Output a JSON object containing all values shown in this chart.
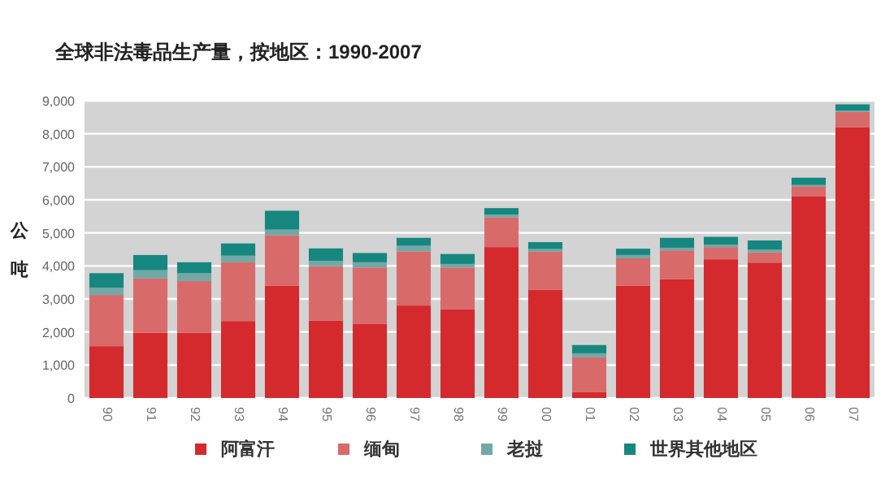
{
  "chart_data": {
    "type": "bar",
    "title": "全球非法毒品生产量，按地区：1990-2007",
    "ylabel": "公吨",
    "stacked": true,
    "categories": [
      "90",
      "91",
      "92",
      "93",
      "94",
      "95",
      "96",
      "97",
      "98",
      "99",
      "00",
      "01",
      "02",
      "03",
      "04",
      "05",
      "06",
      "07"
    ],
    "series": [
      {
        "name": "阿富汗",
        "color": "#d42a2e",
        "values": [
          1570,
          1980,
          1970,
          2330,
          3400,
          2340,
          2250,
          2800,
          2690,
          4570,
          3280,
          185,
          3400,
          3600,
          4200,
          4100,
          6100,
          8200
        ]
      },
      {
        "name": "缅甸",
        "color": "#d96a6a",
        "values": [
          1550,
          1640,
          1570,
          1780,
          1530,
          1650,
          1700,
          1640,
          1260,
          900,
          1150,
          1050,
          830,
          870,
          370,
          310,
          310,
          460
        ]
      },
      {
        "name": "老挝",
        "color": "#72a8a6",
        "values": [
          220,
          250,
          240,
          200,
          170,
          160,
          160,
          170,
          110,
          80,
          80,
          120,
          100,
          80,
          70,
          80,
          40,
          40
        ]
      },
      {
        "name": "世界其他地区",
        "color": "#16877f",
        "values": [
          440,
          460,
          330,
          370,
          570,
          380,
          280,
          240,
          300,
          200,
          210,
          250,
          190,
          300,
          240,
          280,
          220,
          190
        ]
      }
    ],
    "ylim": [
      0,
      9000
    ],
    "yticks": [
      {
        "value": 0,
        "label": "0"
      },
      {
        "value": 1000,
        "label": "1,000"
      },
      {
        "value": 2000,
        "label": "2,000"
      },
      {
        "value": 3000,
        "label": "3,000"
      },
      {
        "value": 4000,
        "label": "4,000"
      },
      {
        "value": 5000,
        "label": "5,000"
      },
      {
        "value": 6000,
        "label": "6,000"
      },
      {
        "value": 7000,
        "label": "7,000"
      },
      {
        "value": 8000,
        "label": "8,000"
      },
      {
        "value": 9000,
        "label": "9,000"
      }
    ],
    "grid": "y",
    "legend": "bottom"
  }
}
